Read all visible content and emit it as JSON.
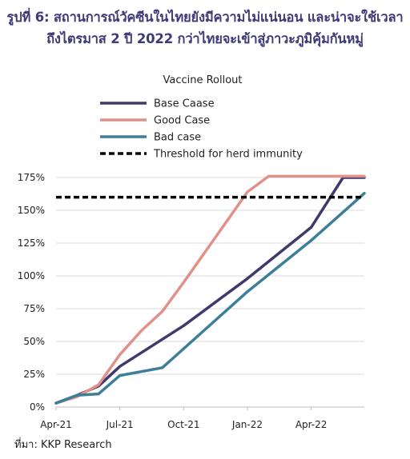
{
  "figure_title": {
    "line1": "รูปที่ 6: สถานการณ์วัคซีนในไทยยังมีความไม่แน่นอน และน่าจะใช้เวลา",
    "line2": "ถึงไตรมาส 2 ปี 2022 กว่าไทยจะเข้าสู่ภาวะภูมิคุ้มกันหมู่"
  },
  "source": "ที่มา: KKP Research",
  "chart_data": {
    "type": "line",
    "title": "Vaccine Rollout",
    "xlabel": "",
    "ylabel": "",
    "x_ticks": [
      "Apr-21",
      "Jul-21",
      "Oct-21",
      "Jan-22",
      "Apr-22"
    ],
    "x_tick_months": [
      0,
      3,
      6,
      9,
      12
    ],
    "xlim": [
      0,
      14.5
    ],
    "y_ticks": [
      "0%",
      "25%",
      "50%",
      "75%",
      "100%",
      "125%",
      "150%",
      "175%"
    ],
    "y_tick_values": [
      0,
      25,
      50,
      75,
      100,
      125,
      150,
      175
    ],
    "ylim": [
      0,
      175
    ],
    "legend_position": "top-center",
    "grid": true,
    "series": [
      {
        "name": "Base Caase",
        "color": "#3f3a6b",
        "dash": "solid",
        "x": [
          0,
          1,
          2,
          3,
          6,
          9,
          12,
          13.5,
          14.5
        ],
        "y": [
          3,
          9,
          16,
          31,
          62,
          98,
          137,
          175,
          175
        ]
      },
      {
        "name": "Good Case",
        "color": "#e0918a",
        "dash": "solid",
        "x": [
          0,
          1,
          2,
          3,
          4,
          5,
          6,
          9,
          10,
          14.5
        ],
        "y": [
          3,
          8,
          17,
          40,
          58,
          73,
          95,
          164,
          176,
          176
        ]
      },
      {
        "name": "Bad case",
        "color": "#3d7f98",
        "dash": "solid",
        "x": [
          0,
          1,
          2,
          3,
          5,
          9,
          12,
          14.5
        ],
        "y": [
          3,
          9,
          10,
          24,
          30,
          88,
          127,
          163
        ]
      },
      {
        "name": "Threshold for herd immunity",
        "color": "#000000",
        "dash": "dashed",
        "x": [
          0,
          14.5
        ],
        "y": [
          160,
          160
        ]
      }
    ]
  }
}
